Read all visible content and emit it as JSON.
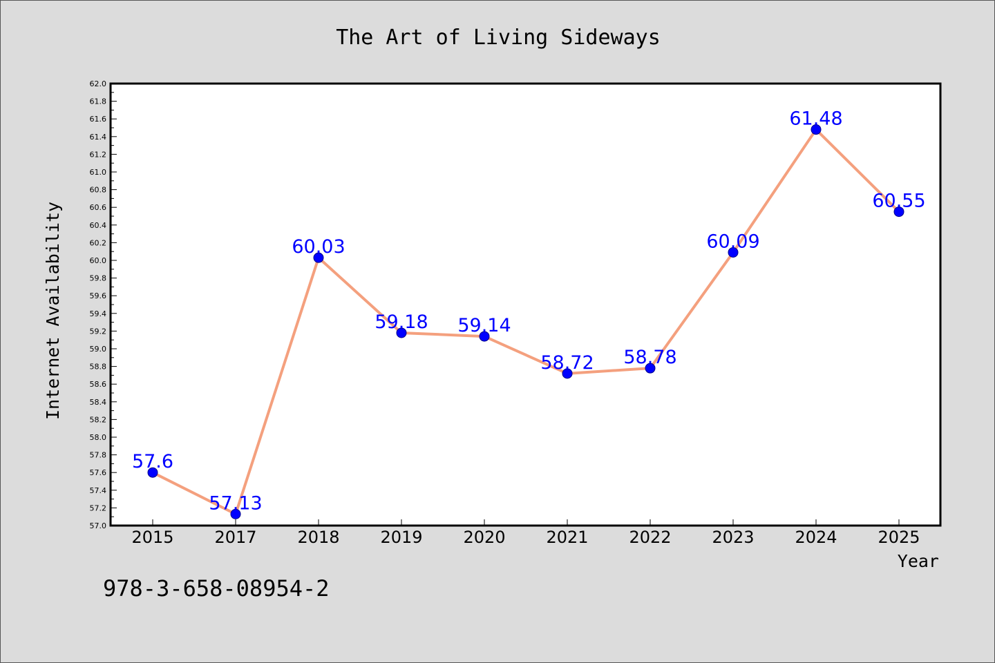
{
  "chart_data": {
    "type": "line",
    "title": "The Art of Living Sideways",
    "xlabel": "Year",
    "ylabel": "Internet Availability",
    "x": [
      "2015",
      "2017",
      "2018",
      "2019",
      "2020",
      "2021",
      "2022",
      "2023",
      "2024",
      "2025"
    ],
    "series": [
      {
        "values": [
          57.6,
          57.13,
          60.03,
          59.18,
          59.14,
          58.72,
          58.78,
          60.09,
          61.48,
          60.55
        ]
      }
    ],
    "data_labels": [
      "57.6",
      "57.13",
      "60.03",
      "59.18",
      "59.14",
      "58.72",
      "58.78",
      "60.09",
      "61.48",
      "60.55"
    ],
    "ylim": [
      57.0,
      62.0
    ],
    "yticks": [
      "57.0",
      "57.2",
      "57.4",
      "57.6",
      "57.8",
      "58.0",
      "58.2",
      "58.4",
      "58.6",
      "58.8",
      "59.0",
      "59.2",
      "59.4",
      "59.6",
      "59.8",
      "60.0",
      "60.2",
      "60.4",
      "60.6",
      "60.8",
      "61.0",
      "61.2",
      "61.4",
      "61.6",
      "61.8",
      "62.0"
    ],
    "grid": false,
    "colors": {
      "line": "#f4a07e",
      "marker": "#0000ff",
      "label": "#0000ff",
      "plot_bg": "#ffffff",
      "figure_bg": "#dcdcdc"
    }
  },
  "footer": {
    "isbn": "978-3-658-08954-2"
  }
}
